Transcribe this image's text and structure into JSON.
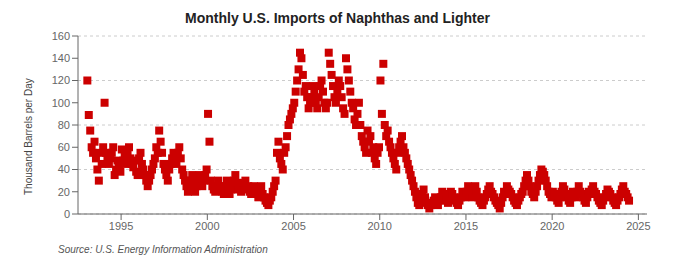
{
  "chart_data": {
    "type": "scatter",
    "title": "Monthly U.S. Imports of Naphthas and Lighter",
    "y_label": "Thousand Barrels per Day",
    "annotations": [
      "Source: U.S. Energy Information Administration"
    ],
    "color": "#CC0000",
    "marker": "square",
    "grid": true,
    "xlim": [
      1992.5,
      2025.5
    ],
    "xticks": [
      1995,
      2000,
      2005,
      2010,
      2015,
      2020,
      2025
    ],
    "ylim": [
      0,
      160
    ],
    "yticks": [
      0,
      20,
      40,
      60,
      80,
      100,
      120,
      140,
      160
    ],
    "x": [
      1993.041667,
      1993.125,
      1993.208333,
      1993.291667,
      1993.375,
      1993.458333,
      1993.541667,
      1993.625,
      1993.708333,
      1993.791667,
      1993.875,
      1993.958333,
      1994.041667,
      1994.125,
      1994.208333,
      1994.291667,
      1994.375,
      1994.458333,
      1994.541667,
      1994.625,
      1994.708333,
      1994.791667,
      1994.875,
      1994.958333,
      1995.041667,
      1995.125,
      1995.208333,
      1995.291667,
      1995.375,
      1995.458333,
      1995.541667,
      1995.625,
      1995.708333,
      1995.791667,
      1995.875,
      1995.958333,
      1996.041667,
      1996.125,
      1996.208333,
      1996.291667,
      1996.375,
      1996.458333,
      1996.541667,
      1996.625,
      1996.708333,
      1996.791667,
      1996.875,
      1996.958333,
      1997.041667,
      1997.125,
      1997.208333,
      1997.291667,
      1997.375,
      1997.458333,
      1997.541667,
      1997.625,
      1997.708333,
      1997.791667,
      1997.875,
      1997.958333,
      1998.041667,
      1998.125,
      1998.208333,
      1998.291667,
      1998.375,
      1998.458333,
      1998.541667,
      1998.625,
      1998.708333,
      1998.791667,
      1998.875,
      1998.958333,
      1999.041667,
      1999.125,
      1999.208333,
      1999.291667,
      1999.375,
      1999.458333,
      1999.541667,
      1999.625,
      1999.708333,
      1999.791667,
      1999.875,
      1999.958333,
      2000.041667,
      2000.125,
      2000.208333,
      2000.291667,
      2000.375,
      2000.458333,
      2000.541667,
      2000.625,
      2000.708333,
      2000.791667,
      2000.875,
      2000.958333,
      2001.041667,
      2001.125,
      2001.208333,
      2001.291667,
      2001.375,
      2001.458333,
      2001.541667,
      2001.625,
      2001.708333,
      2001.791667,
      2001.875,
      2001.958333,
      2002.041667,
      2002.125,
      2002.208333,
      2002.291667,
      2002.375,
      2002.458333,
      2002.541667,
      2002.625,
      2002.708333,
      2002.791667,
      2002.875,
      2002.958333,
      2003.041667,
      2003.125,
      2003.208333,
      2003.291667,
      2003.375,
      2003.458333,
      2003.541667,
      2003.625,
      2003.708333,
      2003.791667,
      2003.875,
      2003.958333,
      2004.041667,
      2004.125,
      2004.208333,
      2004.291667,
      2004.375,
      2004.458333,
      2004.541667,
      2004.625,
      2004.708333,
      2004.791667,
      2004.875,
      2004.958333,
      2005.041667,
      2005.125,
      2005.208333,
      2005.291667,
      2005.375,
      2005.458333,
      2005.541667,
      2005.625,
      2005.708333,
      2005.791667,
      2005.875,
      2005.958333,
      2006.041667,
      2006.125,
      2006.208333,
      2006.291667,
      2006.375,
      2006.458333,
      2006.541667,
      2006.625,
      2006.708333,
      2006.791667,
      2006.875,
      2006.958333,
      2007.041667,
      2007.125,
      2007.208333,
      2007.291667,
      2007.375,
      2007.458333,
      2007.541667,
      2007.625,
      2007.708333,
      2007.791667,
      2007.875,
      2007.958333,
      2008.041667,
      2008.125,
      2008.208333,
      2008.291667,
      2008.375,
      2008.458333,
      2008.541667,
      2008.625,
      2008.708333,
      2008.791667,
      2008.875,
      2008.958333,
      2009.041667,
      2009.125,
      2009.208333,
      2009.291667,
      2009.375,
      2009.458333,
      2009.541667,
      2009.625,
      2009.708333,
      2009.791667,
      2009.875,
      2009.958333,
      2010.041667,
      2010.125,
      2010.208333,
      2010.291667,
      2010.375,
      2010.458333,
      2010.541667,
      2010.625,
      2010.708333,
      2010.791667,
      2010.875,
      2010.958333,
      2011.041667,
      2011.125,
      2011.208333,
      2011.291667,
      2011.375,
      2011.458333,
      2011.541667,
      2011.625,
      2011.708333,
      2011.791667,
      2011.875,
      2011.958333,
      2012.041667,
      2012.125,
      2012.208333,
      2012.291667,
      2012.375,
      2012.458333,
      2012.541667,
      2012.625,
      2012.708333,
      2012.791667,
      2012.875,
      2012.958333,
      2013.041667,
      2013.125,
      2013.208333,
      2013.291667,
      2013.375,
      2013.458333,
      2013.541667,
      2013.625,
      2013.708333,
      2013.791667,
      2013.875,
      2013.958333,
      2014.041667,
      2014.125,
      2014.208333,
      2014.291667,
      2014.375,
      2014.458333,
      2014.541667,
      2014.625,
      2014.708333,
      2014.791667,
      2014.875,
      2014.958333,
      2015.041667,
      2015.125,
      2015.208333,
      2015.291667,
      2015.375,
      2015.458333,
      2015.541667,
      2015.625,
      2015.708333,
      2015.791667,
      2015.875,
      2015.958333,
      2016.041667,
      2016.125,
      2016.208333,
      2016.291667,
      2016.375,
      2016.458333,
      2016.541667,
      2016.625,
      2016.708333,
      2016.791667,
      2016.875,
      2016.958333,
      2017.041667,
      2017.125,
      2017.208333,
      2017.291667,
      2017.375,
      2017.458333,
      2017.541667,
      2017.625,
      2017.708333,
      2017.791667,
      2017.875,
      2017.958333,
      2018.041667,
      2018.125,
      2018.208333,
      2018.291667,
      2018.375,
      2018.458333,
      2018.541667,
      2018.625,
      2018.708333,
      2018.791667,
      2018.875,
      2018.958333,
      2019.041667,
      2019.125,
      2019.208333,
      2019.291667,
      2019.375,
      2019.458333,
      2019.541667,
      2019.625,
      2019.708333,
      2019.791667,
      2019.875,
      2019.958333,
      2020.041667,
      2020.125,
      2020.208333,
      2020.291667,
      2020.375,
      2020.458333,
      2020.541667,
      2020.625,
      2020.708333,
      2020.791667,
      2020.875,
      2020.958333,
      2021.041667,
      2021.125,
      2021.208333,
      2021.291667,
      2021.375,
      2021.458333,
      2021.541667,
      2021.625,
      2021.708333,
      2021.791667,
      2021.875,
      2021.958333,
      2022.041667,
      2022.125,
      2022.208333,
      2022.291667,
      2022.375,
      2022.458333,
      2022.541667,
      2022.625,
      2022.708333,
      2022.791667,
      2022.875,
      2022.958333,
      2023.041667,
      2023.125,
      2023.208333,
      2023.291667,
      2023.375,
      2023.458333,
      2023.541667,
      2023.625,
      2023.708333,
      2023.791667,
      2023.875,
      2023.958333,
      2024.041667,
      2024.125,
      2024.208333,
      2024.291667,
      2024.375,
      2024.458333
    ],
    "values": [
      120,
      89,
      75,
      60,
      55,
      65,
      50,
      40,
      30,
      55,
      45,
      60,
      100,
      55,
      50,
      45,
      50,
      55,
      60,
      35,
      40,
      48,
      42,
      38,
      58,
      48,
      52,
      45,
      55,
      60,
      50,
      45,
      42,
      48,
      38,
      35,
      50,
      55,
      45,
      40,
      35,
      30,
      25,
      30,
      35,
      40,
      45,
      50,
      60,
      55,
      75,
      65,
      55,
      45,
      40,
      35,
      30,
      40,
      45,
      50,
      55,
      50,
      45,
      55,
      60,
      50,
      40,
      35,
      30,
      25,
      20,
      25,
      30,
      35,
      25,
      20,
      25,
      30,
      35,
      30,
      25,
      30,
      35,
      40,
      90,
      65,
      30,
      25,
      22,
      20,
      25,
      30,
      25,
      22,
      20,
      18,
      25,
      30,
      22,
      18,
      22,
      25,
      30,
      35,
      28,
      22,
      25,
      20,
      25,
      28,
      30,
      22,
      25,
      20,
      18,
      22,
      25,
      20,
      18,
      15,
      20,
      25,
      18,
      15,
      12,
      10,
      8,
      12,
      15,
      20,
      25,
      30,
      55,
      65,
      50,
      45,
      40,
      55,
      60,
      70,
      80,
      85,
      90,
      95,
      100,
      110,
      120,
      130,
      145,
      140,
      125,
      110,
      115,
      105,
      95,
      100,
      105,
      115,
      110,
      100,
      95,
      105,
      115,
      120,
      110,
      100,
      95,
      100,
      145,
      135,
      125,
      115,
      105,
      100,
      110,
      120,
      115,
      105,
      95,
      90,
      140,
      130,
      120,
      110,
      100,
      95,
      85,
      80,
      90,
      100,
      80,
      70,
      65,
      60,
      55,
      75,
      65,
      70,
      55,
      60,
      50,
      45,
      55,
      60,
      120,
      90,
      135,
      80,
      70,
      75,
      65,
      60,
      55,
      50,
      45,
      40,
      55,
      60,
      65,
      70,
      60,
      55,
      50,
      45,
      40,
      35,
      30,
      25,
      20,
      15,
      10,
      8,
      12,
      18,
      22,
      15,
      10,
      8,
      5,
      8,
      10,
      12,
      15,
      10,
      8,
      12,
      15,
      20,
      18,
      15,
      12,
      10,
      15,
      20,
      18,
      15,
      12,
      10,
      8,
      12,
      15,
      20,
      18,
      15,
      20,
      25,
      22,
      18,
      15,
      20,
      25,
      20,
      15,
      12,
      10,
      8,
      12,
      15,
      18,
      22,
      25,
      20,
      18,
      15,
      12,
      10,
      8,
      5,
      10,
      15,
      20,
      18,
      25,
      22,
      20,
      18,
      15,
      12,
      10,
      8,
      12,
      15,
      18,
      20,
      25,
      30,
      35,
      30,
      25,
      20,
      18,
      15,
      20,
      25,
      30,
      35,
      40,
      38,
      35,
      30,
      25,
      20,
      18,
      15,
      20,
      18,
      15,
      12,
      10,
      15,
      20,
      25,
      22,
      18,
      15,
      12,
      10,
      15,
      20,
      18,
      15,
      20,
      25,
      20,
      18,
      15,
      12,
      10,
      15,
      20,
      18,
      22,
      25,
      20,
      18,
      15,
      12,
      10,
      8,
      12,
      15,
      18,
      22,
      20,
      18,
      15,
      12,
      10,
      8,
      12,
      15,
      18,
      22,
      25,
      20,
      18,
      15,
      12
    ]
  }
}
